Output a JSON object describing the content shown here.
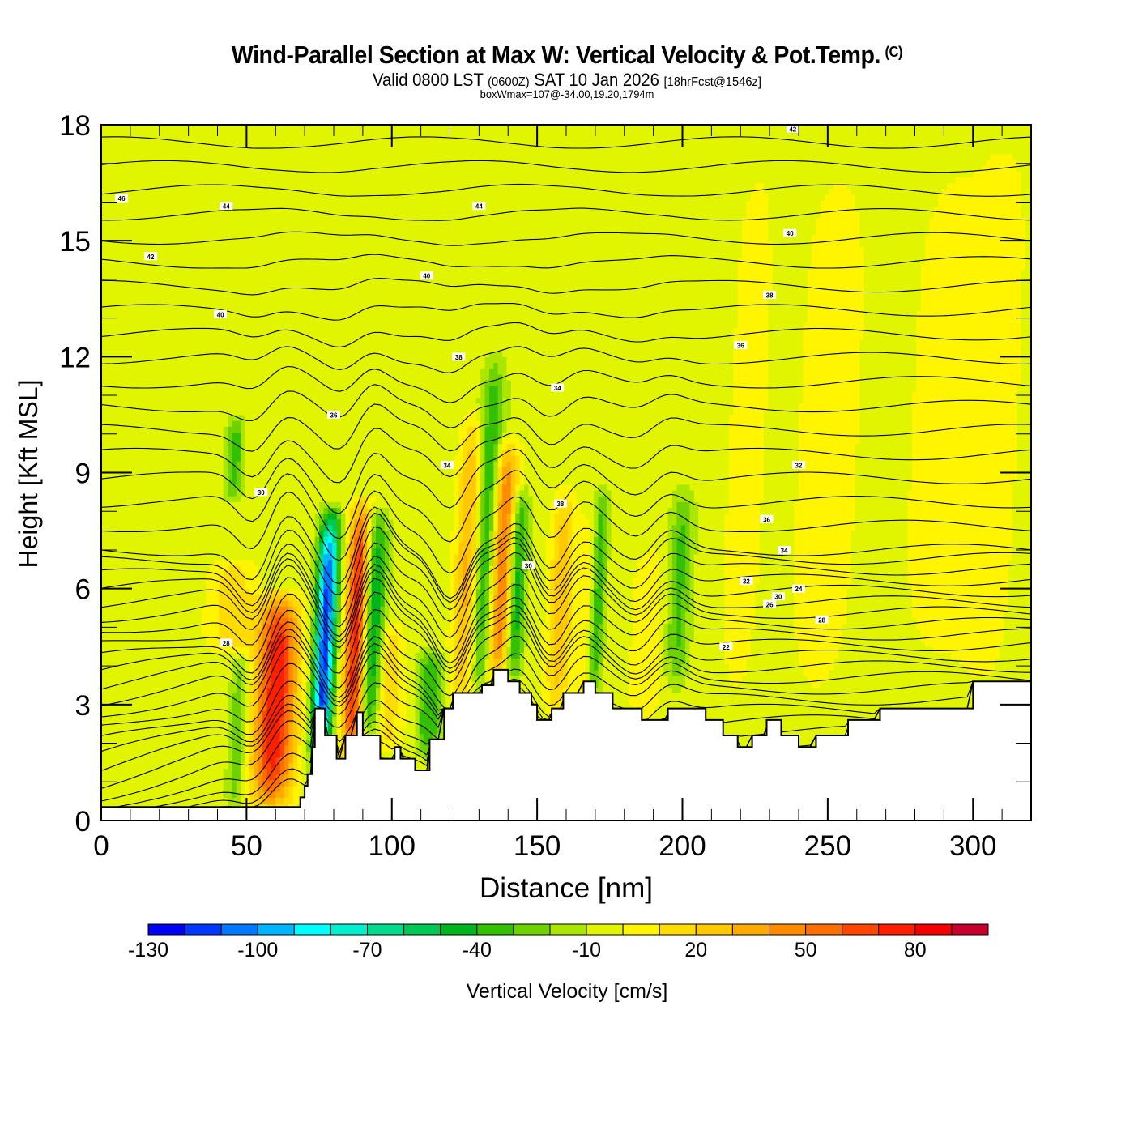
{
  "header": {
    "title": "Wind-Parallel Section at Max W: Vertical Velocity & Pot.Temp.",
    "copyright": "(C)",
    "valid_prefix": "Valid 0800 LST",
    "valid_utc": "(0600Z)",
    "valid_date": "SAT 10 Jan 2026",
    "forecast": "[18hrFcst@1546z]",
    "box_info": "boxWmax=107@-34.00,19.20,1794m"
  },
  "chart_data": {
    "type": "heatmap",
    "title": "Wind-Parallel Section at Max W: Vertical Velocity & Pot.Temp.",
    "xlabel": "Distance [nm]",
    "ylabel": "Height [Kft MSL]",
    "xlim": [
      0,
      320
    ],
    "ylim": [
      0,
      18
    ],
    "x_ticks": [
      0,
      50,
      100,
      150,
      200,
      250,
      300
    ],
    "y_ticks": [
      0,
      3,
      6,
      9,
      12,
      15,
      18
    ],
    "x_minor_step": 10,
    "y_minor_step": 1,
    "colorbar": {
      "label": "Vertical Velocity [cm/s]",
      "placement": "bottom",
      "levels": [
        -130,
        -120,
        -110,
        -100,
        -90,
        -80,
        -70,
        -60,
        -50,
        -40,
        -30,
        -20,
        -10,
        0,
        10,
        20,
        30,
        40,
        50,
        60,
        70,
        80,
        90,
        100
      ],
      "tick_labels": [
        "-130",
        "-100",
        "-70",
        "-40",
        "-10",
        "20",
        "50",
        "80"
      ],
      "colors": [
        "#0000f5",
        "#0038ff",
        "#0078ff",
        "#00b4ff",
        "#00ffff",
        "#00f0d0",
        "#00dc8c",
        "#00c855",
        "#00b41e",
        "#32c000",
        "#6ed200",
        "#aae600",
        "#e1f500",
        "#fff500",
        "#ffdc00",
        "#ffc800",
        "#ffaa00",
        "#ff8c00",
        "#ff6e00",
        "#ff4600",
        "#ff1e00",
        "#f50000",
        "#c8002d"
      ]
    },
    "background_velocity": -5,
    "updraft_bands": [
      {
        "x": 3,
        "zmin": 0.5,
        "zmax": 18,
        "w": 6,
        "peak": 3
      },
      {
        "x": 62,
        "zmin": 10,
        "zmax": 18,
        "w": 8,
        "peak": 5
      },
      {
        "x": 60,
        "zmin": 0.4,
        "zmax": 5.8,
        "w": 7,
        "peak": 85
      },
      {
        "x": 45,
        "zmin": 4.5,
        "zmax": 6.6,
        "w": 8,
        "peak": 22
      },
      {
        "x": 88,
        "zmin": 1.6,
        "zmax": 8.2,
        "w": 4,
        "peak": 88
      },
      {
        "x": 99,
        "zmin": 2,
        "zmax": 5,
        "w": 4,
        "peak": 25
      },
      {
        "x": 108,
        "zmin": 1.7,
        "zmax": 4,
        "w": 4,
        "peak": 15
      },
      {
        "x": 126,
        "zmin": 3,
        "zmax": 10.5,
        "w": 4,
        "peak": 38
      },
      {
        "x": 138,
        "zmin": 3.6,
        "zmax": 9.8,
        "w": 4,
        "peak": 62
      },
      {
        "x": 158,
        "zmin": 2.8,
        "zmax": 8.5,
        "w": 4,
        "peak": 32
      },
      {
        "x": 168,
        "zmin": 3,
        "zmax": 8,
        "w": 5,
        "peak": 12
      },
      {
        "x": 188,
        "zmin": 2.6,
        "zmax": 7,
        "w": 6,
        "peak": 12
      },
      {
        "x": 222,
        "zmin": 2,
        "zmax": 18,
        "w": 8,
        "peak": 8
      },
      {
        "x": 250,
        "zmin": 2,
        "zmax": 18,
        "w": 14,
        "peak": 8
      },
      {
        "x": 292,
        "zmin": 3,
        "zmax": 18,
        "w": 18,
        "peak": 8
      },
      {
        "x": 308,
        "zmin": 3,
        "zmax": 18,
        "w": 8,
        "peak": 8
      }
    ],
    "downdraft_bands": [
      {
        "x": 77,
        "zmin": 1.2,
        "zmax": 8,
        "w": 3.5,
        "peak": -110
      },
      {
        "x": 93,
        "zmin": 2.2,
        "zmax": 8,
        "w": 4,
        "peak": -55
      },
      {
        "x": 47,
        "zmin": 0.4,
        "zmax": 4.2,
        "w": 3,
        "peak": -25
      },
      {
        "x": 46,
        "zmin": 8.5,
        "zmax": 10.3,
        "w": 3,
        "peak": -30
      },
      {
        "x": 112,
        "zmin": 1.8,
        "zmax": 4.2,
        "w": 5,
        "peak": -40
      },
      {
        "x": 133,
        "zmin": 3.2,
        "zmax": 12,
        "w": 4,
        "peak": -40
      },
      {
        "x": 143,
        "zmin": 3.7,
        "zmax": 8.5,
        "w": 3,
        "peak": -45
      },
      {
        "x": 171,
        "zmin": 3.2,
        "zmax": 8.5,
        "w": 2.5,
        "peak": -40
      },
      {
        "x": 199,
        "zmin": 3.5,
        "zmax": 8.5,
        "w": 4,
        "peak": -28
      }
    ],
    "terrain_kft": {
      "x": [
        0,
        40,
        40.5,
        68.5,
        68.5,
        70,
        70,
        71,
        71,
        72.5,
        72.5,
        73.5,
        73.5,
        77,
        77,
        81,
        81,
        84,
        84,
        88,
        88,
        90,
        90,
        96,
        96,
        101,
        101,
        103,
        103,
        108,
        108,
        113,
        113,
        118,
        118,
        121,
        121,
        124,
        124,
        127,
        127,
        131,
        131,
        135,
        135,
        140,
        140,
        144,
        144,
        148,
        148,
        150,
        150,
        155,
        155,
        159,
        159,
        166,
        166,
        170,
        170,
        176,
        176,
        186,
        186,
        195,
        195,
        208,
        208,
        214,
        214,
        219,
        219,
        224,
        224,
        229,
        229,
        234,
        234,
        240,
        240,
        246,
        246,
        257,
        257,
        268,
        268,
        300,
        300,
        315,
        315,
        320
      ],
      "z": [
        0.35,
        0.35,
        0.35,
        0.35,
        0.6,
        0.6,
        0.9,
        0.9,
        1.2,
        1.2,
        1.9,
        1.9,
        2.9,
        2.9,
        2.2,
        2.2,
        1.6,
        1.6,
        2.2,
        2.2,
        2.8,
        2.8,
        2.2,
        2.2,
        1.6,
        1.6,
        1.9,
        1.9,
        1.6,
        1.6,
        1.3,
        1.3,
        2.1,
        2.1,
        2.9,
        2.9,
        3.3,
        3.3,
        3.3,
        3.3,
        3.3,
        3.3,
        3.5,
        3.5,
        3.9,
        3.9,
        3.6,
        3.6,
        3.3,
        3.3,
        3.0,
        3.0,
        2.6,
        2.6,
        2.9,
        2.9,
        3.3,
        3.3,
        3.6,
        3.6,
        3.3,
        3.3,
        2.9,
        2.9,
        2.6,
        2.6,
        2.9,
        2.9,
        2.6,
        2.6,
        2.2,
        2.2,
        1.9,
        1.9,
        2.2,
        2.2,
        2.6,
        2.6,
        2.2,
        2.2,
        1.9,
        1.9,
        2.2,
        2.2,
        2.6,
        2.6,
        2.9,
        2.9,
        3.6,
        3.6,
        3.6,
        3.6
      ]
    },
    "isentropes": {
      "count": 40,
      "label_values": [
        "46",
        "44",
        "44",
        "42",
        "42",
        "40",
        "40",
        "40",
        "38",
        "38",
        "36",
        "36",
        "34",
        "34",
        "32",
        "30",
        "38",
        "36",
        "34",
        "32",
        "30",
        "28",
        "26",
        "24",
        "22",
        "30",
        "28"
      ]
    }
  }
}
